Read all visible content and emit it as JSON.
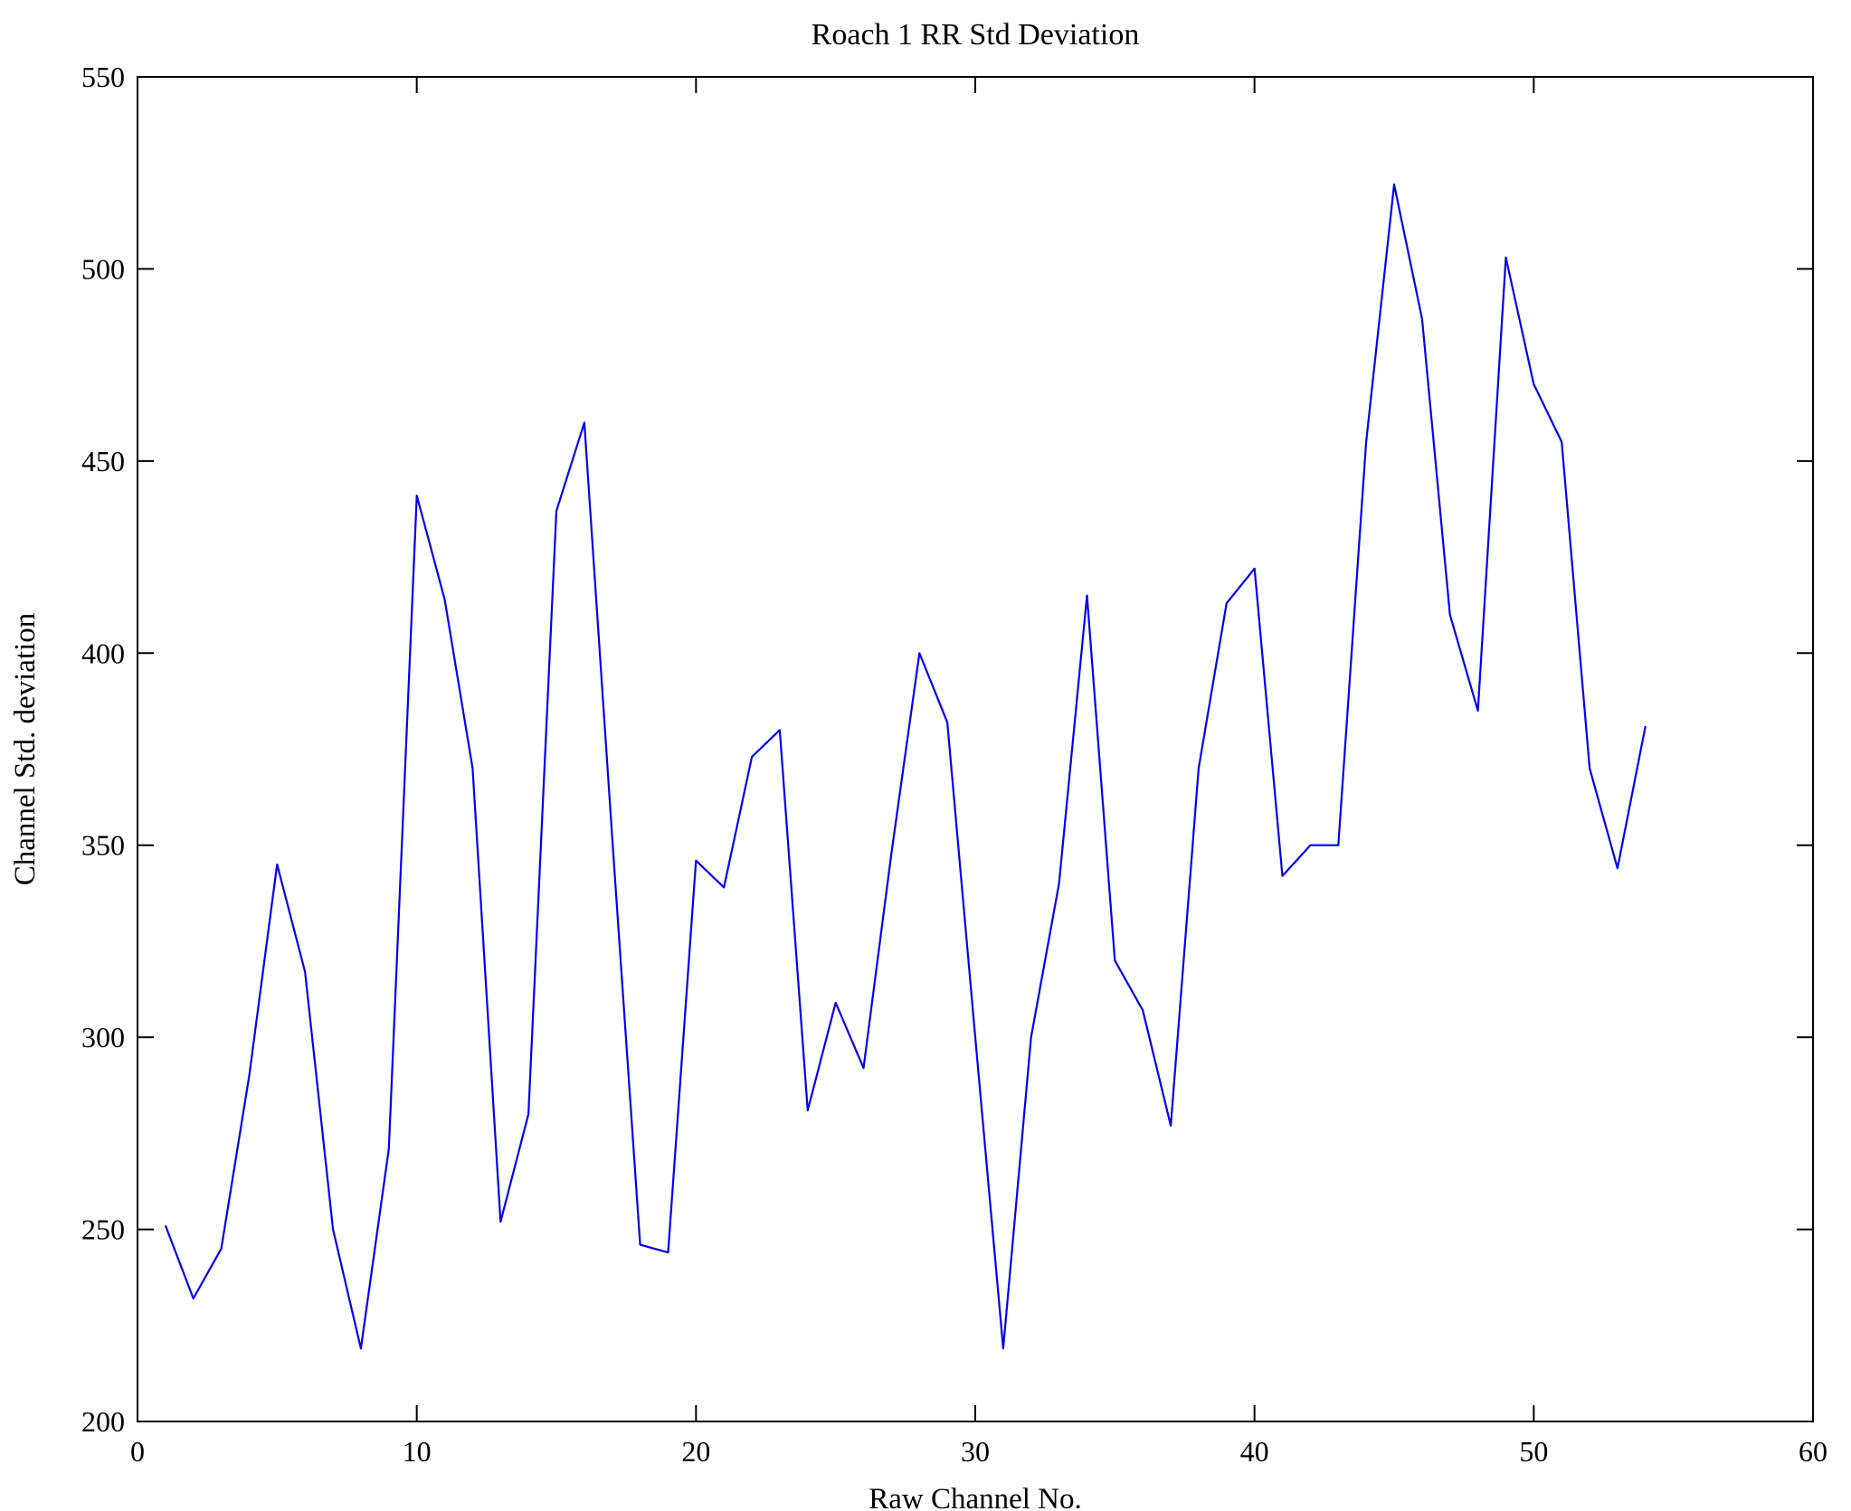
{
  "chart_data": {
    "type": "line",
    "title": "Roach 1 RR Std Deviation",
    "xlabel": "Raw Channel No.",
    "ylabel": "Channel Std. deviation",
    "xlim": [
      0,
      60
    ],
    "ylim": [
      200,
      550
    ],
    "xticks": [
      0,
      10,
      20,
      30,
      40,
      50,
      60
    ],
    "yticks": [
      200,
      250,
      300,
      350,
      400,
      450,
      500,
      550
    ],
    "grid": false,
    "legend": "none",
    "line_color": "#0000EE",
    "axis_color": "#000000",
    "background": "#FFFFFF",
    "x": [
      1,
      2,
      3,
      4,
      5,
      6,
      7,
      8,
      9,
      10,
      11,
      12,
      13,
      14,
      15,
      16,
      17,
      18,
      19,
      20,
      21,
      22,
      23,
      24,
      25,
      26,
      27,
      28,
      29,
      30,
      31,
      32,
      33,
      34,
      35,
      36,
      37,
      38,
      39,
      40,
      41,
      42,
      43,
      44,
      45,
      46,
      47,
      48,
      49,
      50,
      51,
      52,
      53,
      54
    ],
    "values": [
      251,
      232,
      245,
      290,
      345,
      317,
      250,
      219,
      271,
      441,
      414,
      370,
      252,
      280,
      437,
      460,
      352,
      246,
      244,
      346,
      339,
      373,
      380,
      281,
      309,
      292,
      348,
      400,
      382,
      300,
      219,
      300,
      340,
      415,
      320,
      307,
      277,
      370,
      413,
      422,
      342,
      350,
      350,
      455,
      522,
      487,
      410,
      385,
      503,
      470,
      455,
      370,
      344,
      381
    ]
  }
}
